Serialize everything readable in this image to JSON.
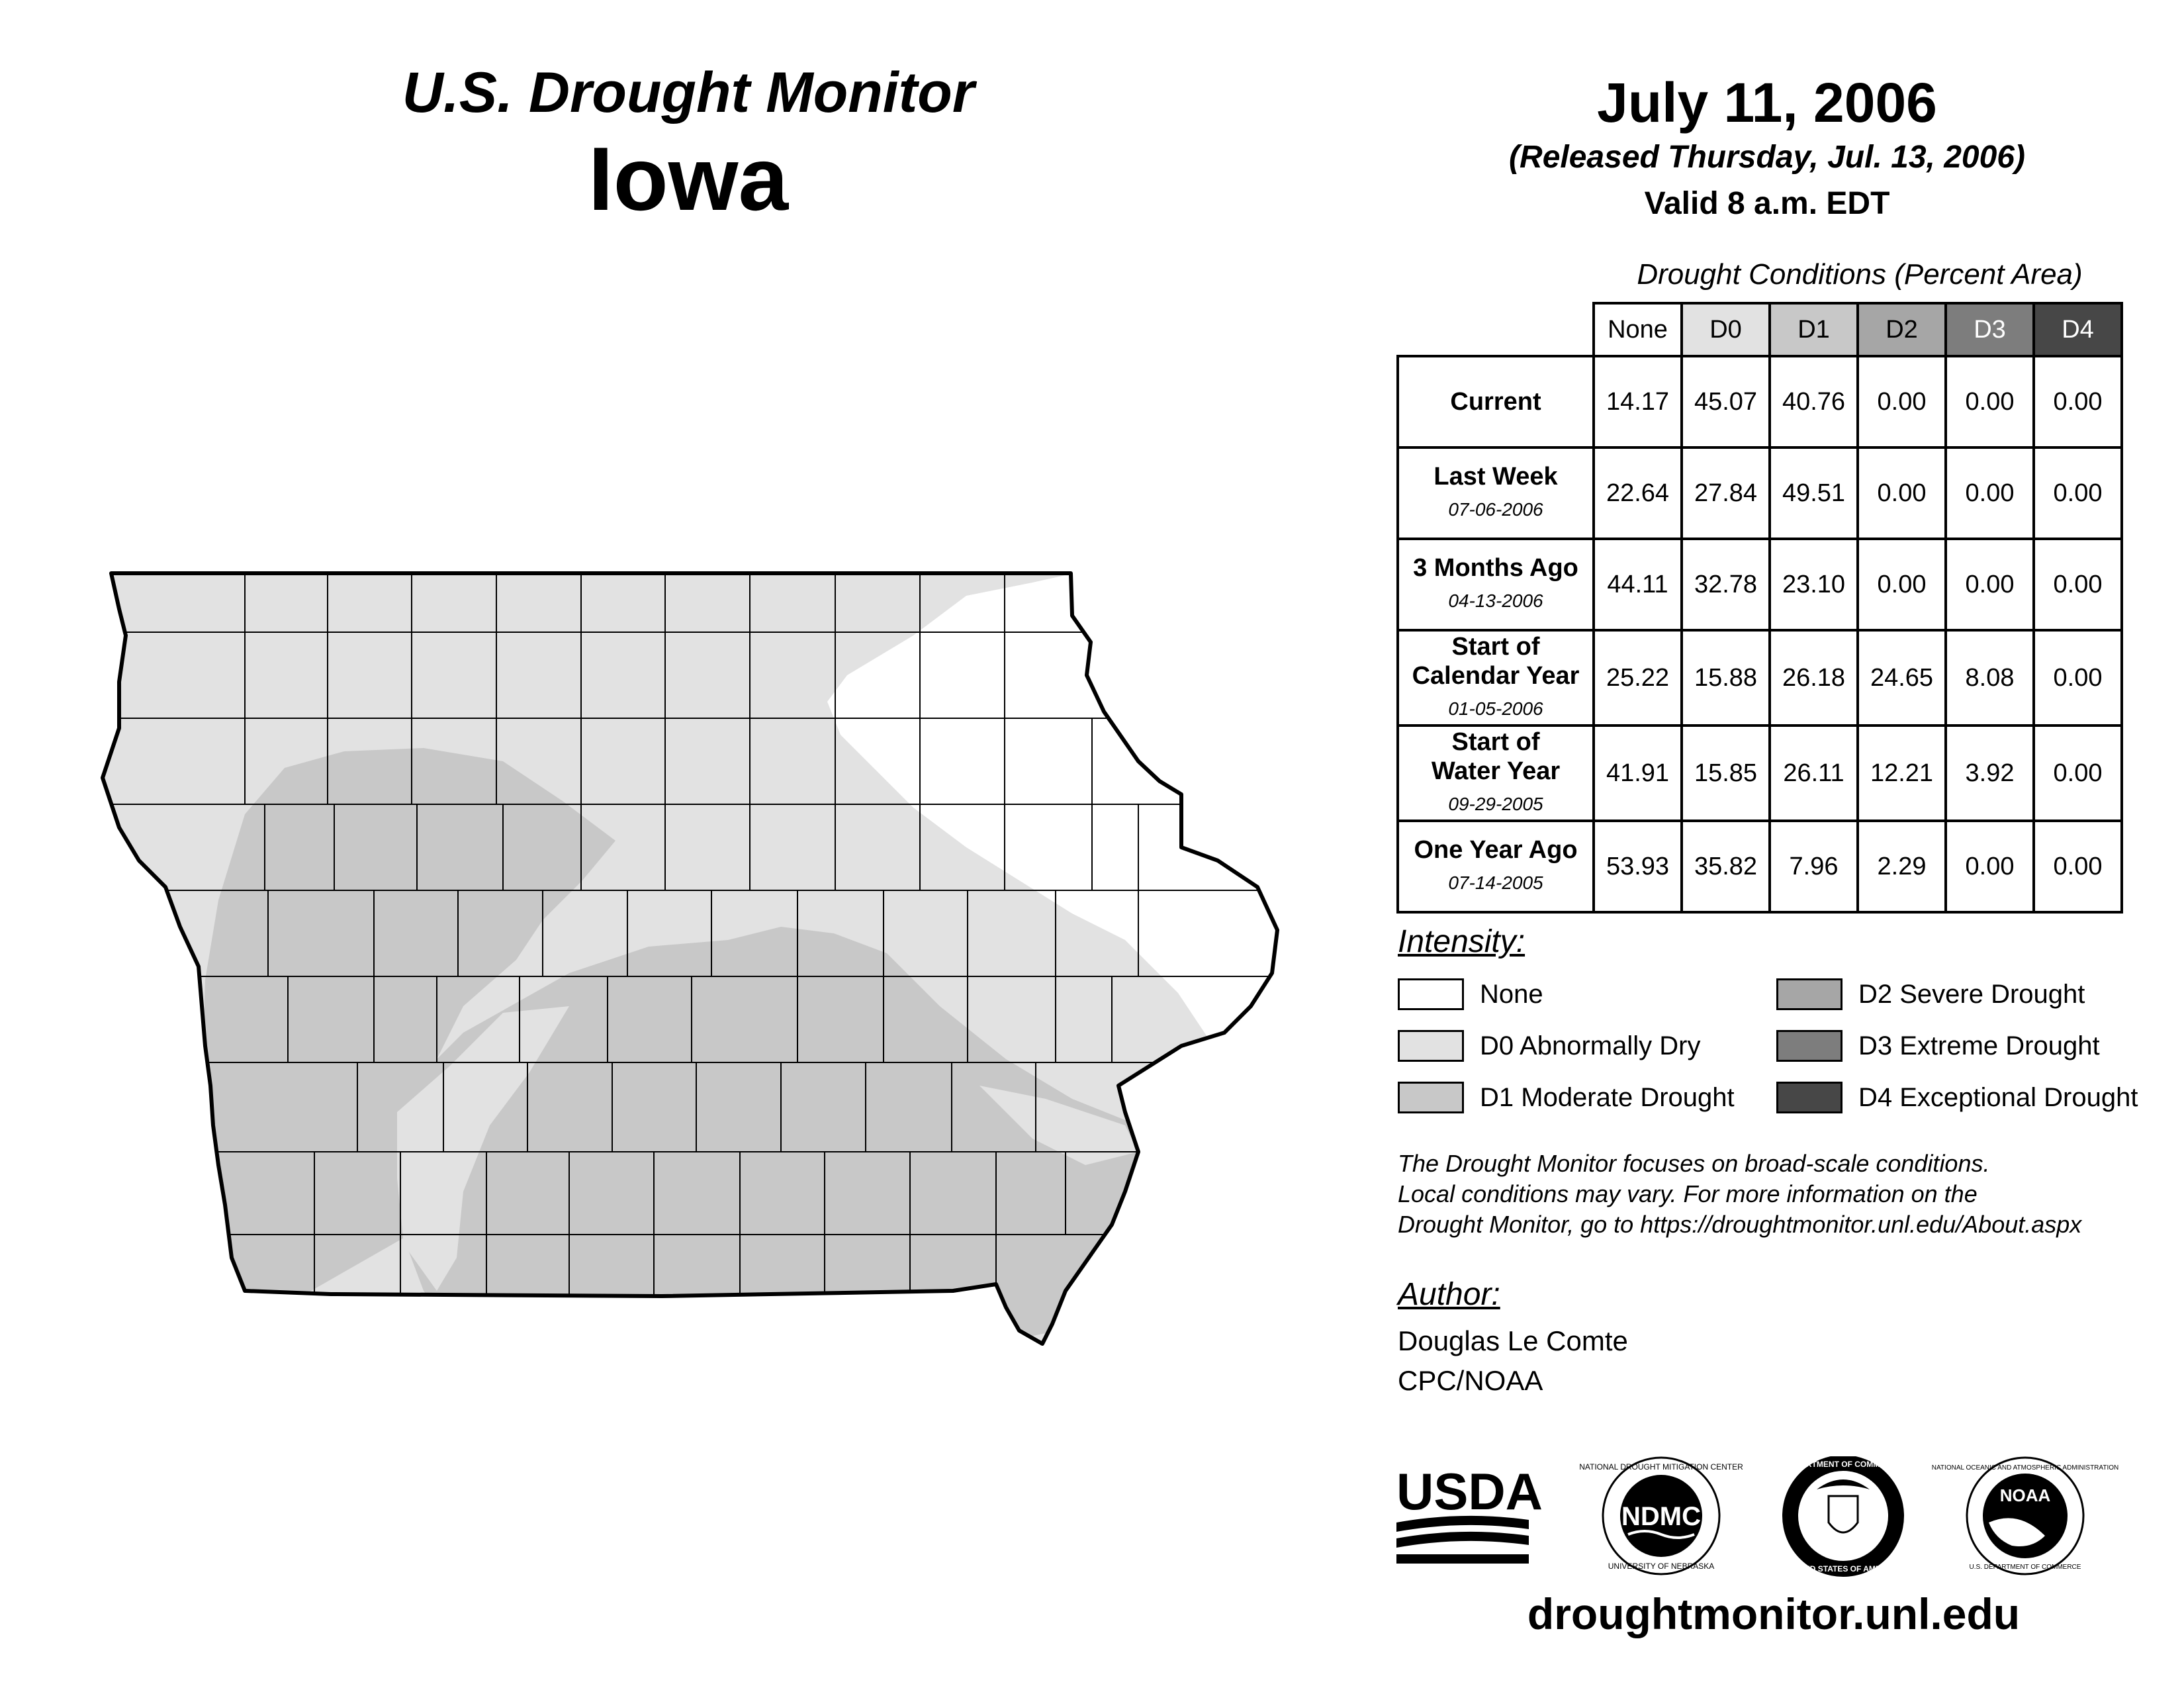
{
  "header": {
    "subtitle": "U.S. Drought Monitor",
    "state": "Iowa",
    "date": "July 11, 2006",
    "released": "(Released Thursday, Jul. 13, 2006)",
    "valid": "Valid 8 a.m. EDT"
  },
  "table": {
    "caption": "Drought Conditions (Percent Area)",
    "columns": [
      "None",
      "D0",
      "D1",
      "D2",
      "D3",
      "D4"
    ],
    "rows": [
      {
        "label": "Current",
        "date": "",
        "values": [
          "14.17",
          "45.07",
          "40.76",
          "0.00",
          "0.00",
          "0.00"
        ]
      },
      {
        "label": "Last Week",
        "date": "07-06-2006",
        "values": [
          "22.64",
          "27.84",
          "49.51",
          "0.00",
          "0.00",
          "0.00"
        ]
      },
      {
        "label": "3 Months Ago",
        "date": "04-13-2006",
        "values": [
          "44.11",
          "32.78",
          "23.10",
          "0.00",
          "0.00",
          "0.00"
        ]
      },
      {
        "label_line1": "Start of",
        "label_line2": "Calendar Year",
        "date": "01-05-2006",
        "values": [
          "25.22",
          "15.88",
          "26.18",
          "24.65",
          "8.08",
          "0.00"
        ]
      },
      {
        "label_line1": "Start of",
        "label_line2": "Water Year",
        "date": "09-29-2005",
        "values": [
          "41.91",
          "15.85",
          "26.11",
          "12.21",
          "3.92",
          "0.00"
        ]
      },
      {
        "label": "One Year Ago",
        "date": "07-14-2005",
        "values": [
          "53.93",
          "35.82",
          "7.96",
          "2.29",
          "0.00",
          "0.00"
        ]
      }
    ]
  },
  "legend": {
    "title": "Intensity:",
    "items": [
      {
        "label": "None",
        "color": "#ffffff"
      },
      {
        "label": "D0 Abnormally Dry",
        "color": "#e2e2e2"
      },
      {
        "label": "D1 Moderate Drought",
        "color": "#c8c8c8"
      },
      {
        "label": "D2 Severe Drought",
        "color": "#a6a6a6"
      },
      {
        "label": "D3 Extreme Drought",
        "color": "#7d7d7d"
      },
      {
        "label": "D4 Exceptional Drought",
        "color": "#474747"
      }
    ]
  },
  "note": {
    "line1": "The Drought Monitor focuses on broad-scale conditions.",
    "line2": "Local conditions may vary. For more information on the",
    "line3": "Drought Monitor, go to https://droughtmonitor.unl.edu/About.aspx"
  },
  "author": {
    "title": "Author:",
    "name": "Douglas Le Comte",
    "org": "CPC/NOAA"
  },
  "logos": {
    "usda": "USDA",
    "ndmc": "NDMC",
    "ndmc_ring_top": "NATIONAL DROUGHT MITIGATION CENTER",
    "ndmc_ring_bottom": "UNIVERSITY OF NEBRASKA",
    "doc_ring_top": "DEPARTMENT OF COMMERCE",
    "doc_ring_bottom": "UNITED STATES OF AMERICA",
    "noaa": "NOAA",
    "noaa_ring_top": "NATIONAL OCEANIC AND ATMOSPHERIC ADMINISTRATION",
    "noaa_ring_bottom": "U.S. DEPARTMENT OF COMMERCE"
  },
  "footer": {
    "url": "droughtmonitor.unl.edu"
  },
  "colors": {
    "none": "#ffffff",
    "d0": "#e2e2e2",
    "d1": "#c8c8c8",
    "outline": "#000000"
  }
}
